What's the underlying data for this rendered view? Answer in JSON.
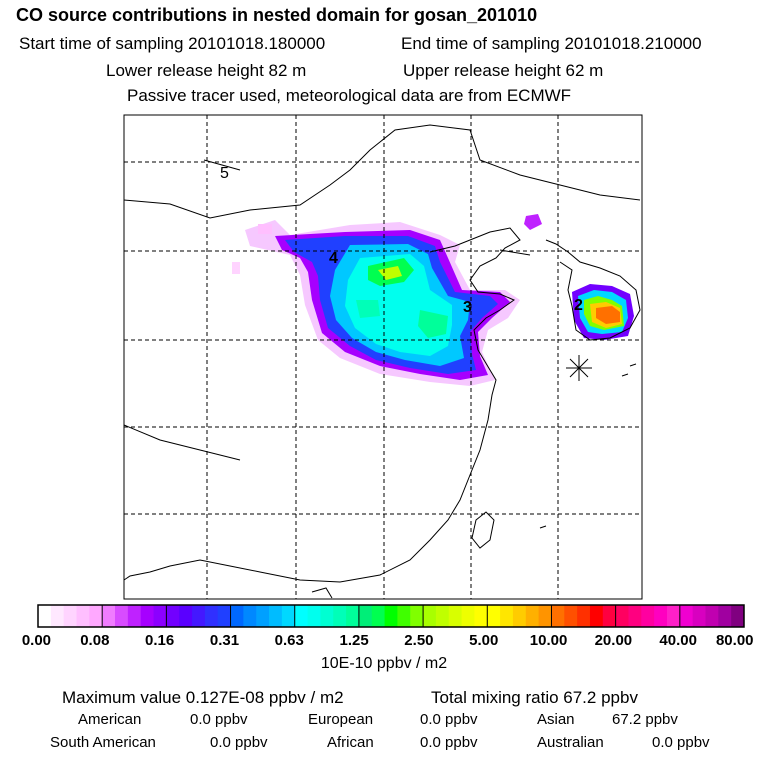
{
  "header": {
    "title": "CO  source contributions in nested domain for gosan_201010",
    "start_label": "Start time of sampling 20101018.180000",
    "end_label": "End time of sampling 20101018.210000",
    "lower_label": "Lower release height   82 m",
    "upper_label": "Upper release height   62 m",
    "note": "Passive tracer used, meteorological data are from ECMWF"
  },
  "map": {
    "region_labels": [
      "5",
      "4",
      "3",
      "2"
    ],
    "receptor_icon": "asterisk-receptor-icon"
  },
  "colorbar": {
    "tick_labels": [
      "0.00",
      "0.08",
      "0.16",
      "0.31",
      "0.63",
      "1.25",
      "2.50",
      "5.00",
      "10.00",
      "20.00",
      "40.00",
      "80.00"
    ],
    "unit": "10E-10 ppbv / m2",
    "colors": [
      [
        "#ffffff",
        "#ffe8ff",
        "#ffd4ff",
        "#ffbfff",
        "#ffa8ff"
      ],
      [
        "#f07cff",
        "#d84cff",
        "#bf22ff",
        "#a600ff",
        "#8c00ff"
      ],
      [
        "#7200ff",
        "#5a00ff",
        "#4418ff",
        "#3030ff",
        "#2040ff"
      ],
      [
        "#0068ff",
        "#0088ff",
        "#00a0ff",
        "#00bcff",
        "#00d8ff"
      ],
      [
        "#00ffff",
        "#00ffee",
        "#00ffd2",
        "#00ffb8",
        "#00ff9a"
      ],
      [
        "#00ee78",
        "#00ff50",
        "#00ff00",
        "#40ff00",
        "#80ff00"
      ],
      [
        "#a8ff00",
        "#c0ff00",
        "#d8ff00",
        "#eeff00",
        "#ffff00"
      ],
      [
        "#ffff00",
        "#ffe600",
        "#ffcc00",
        "#ffb000",
        "#ff9400"
      ],
      [
        "#ff7000",
        "#ff5000",
        "#ff3000",
        "#ff0000",
        "#ff0040"
      ],
      [
        "#ff0060",
        "#ff0080",
        "#ff00a0",
        "#ff00c0",
        "#ff20c8"
      ],
      [
        "#f000d0",
        "#d800c0",
        "#c000b0",
        "#a000a0",
        "#800080"
      ]
    ]
  },
  "summary": {
    "max_label": "Maximum value  0.127E-08 ppbv / m2",
    "mix_label": "Total mixing ratio       67.2 ppbv",
    "sources": [
      {
        "name": "American",
        "value": "0.0 ppbv"
      },
      {
        "name": "European",
        "value": "0.0 ppbv"
      },
      {
        "name": "Asian",
        "value": "67.2 ppbv"
      },
      {
        "name": "South American",
        "value": "0.0 ppbv"
      },
      {
        "name": "African",
        "value": "0.0 ppbv"
      },
      {
        "name": "Australian",
        "value": "0.0 ppbv"
      }
    ]
  }
}
